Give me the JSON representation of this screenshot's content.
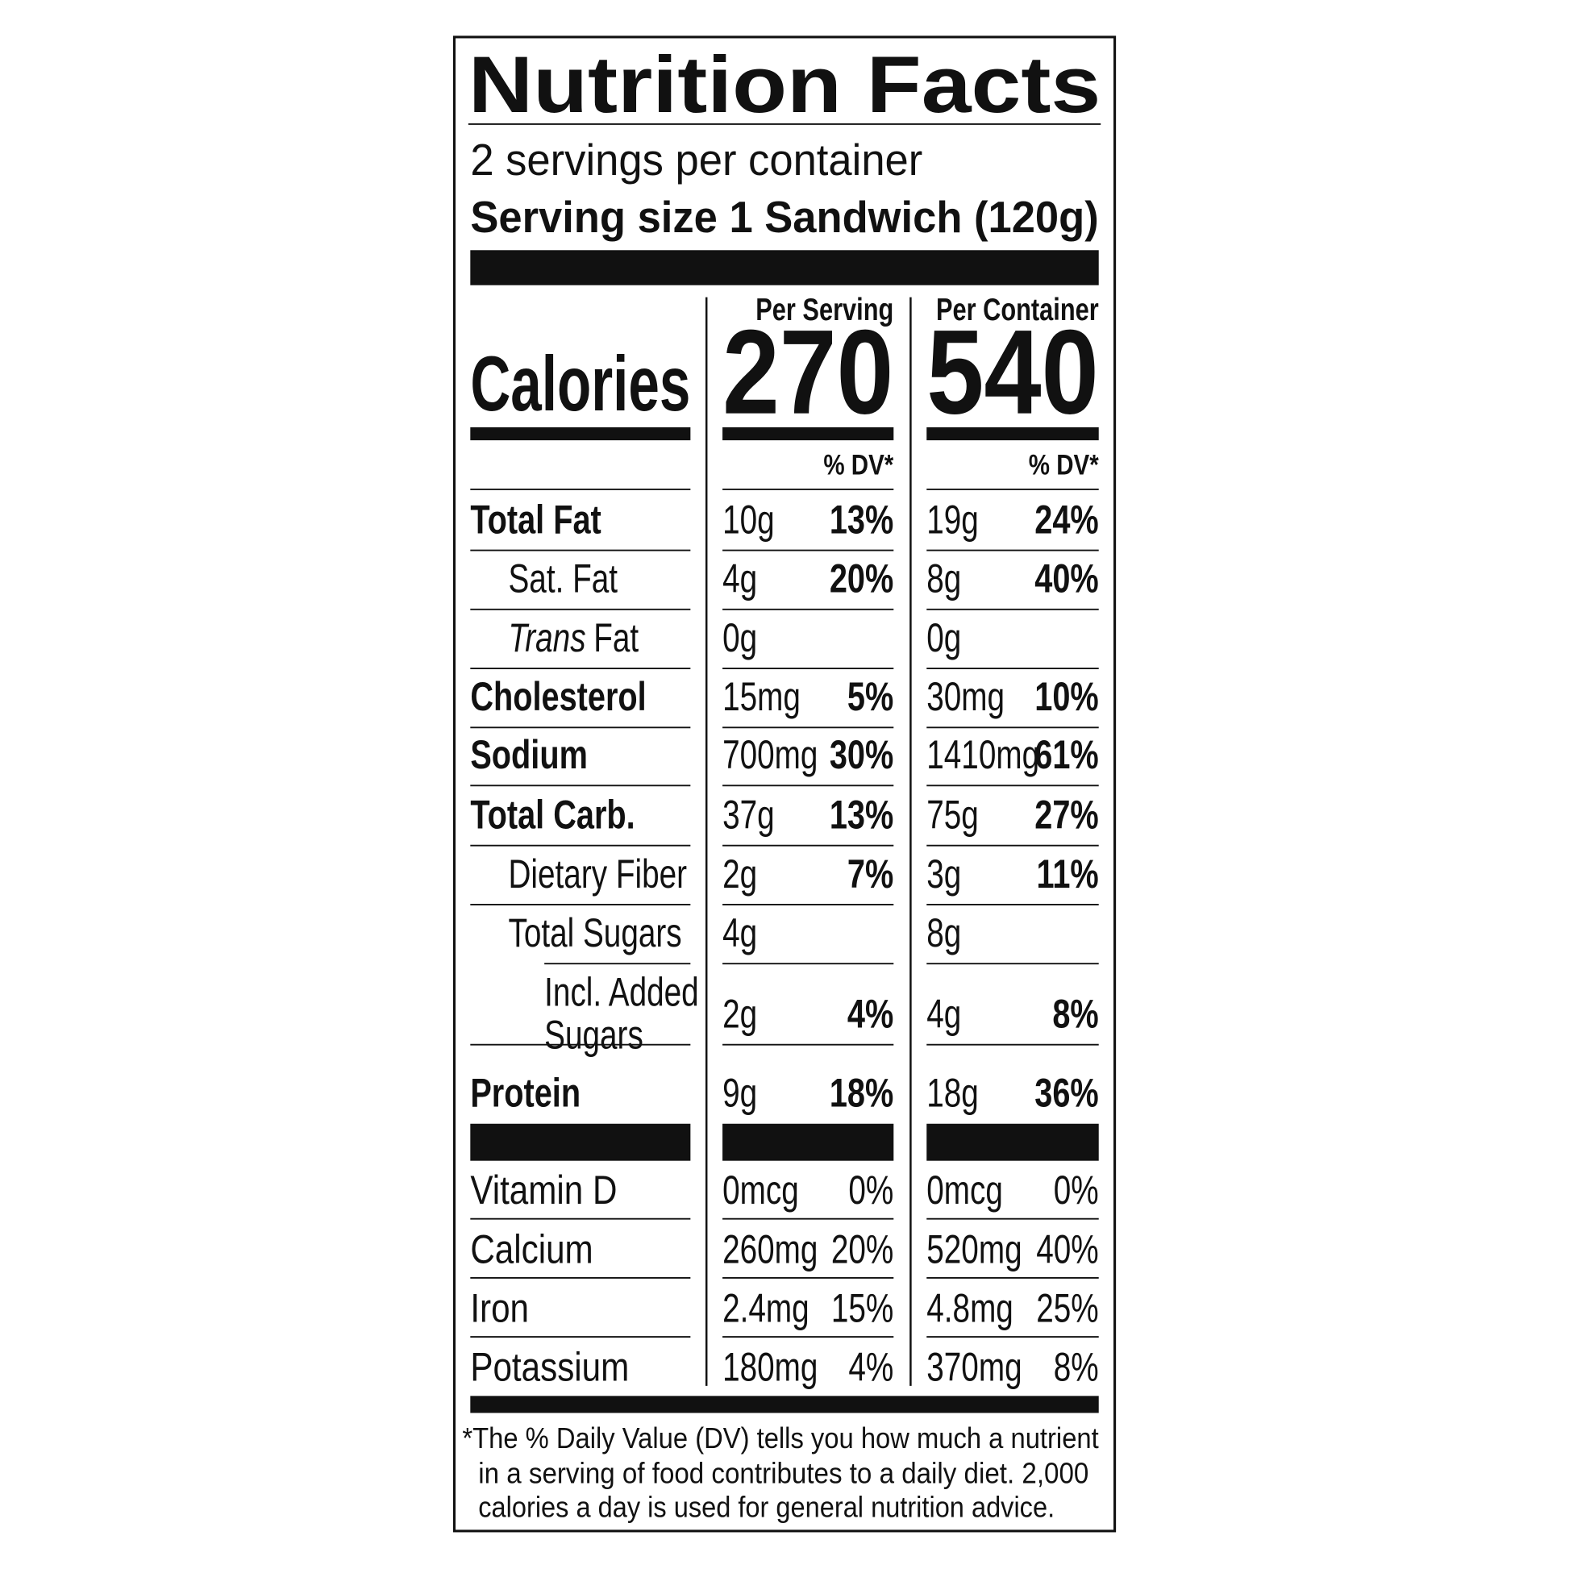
{
  "title": "Nutrition Facts",
  "servings": "2 servings per container",
  "serving_size": "Serving size 1 Sandwich (120g)",
  "columns": [
    "Per Serving",
    "Per Container"
  ],
  "calories_label": "Calories",
  "calories": [
    "270",
    "540"
  ],
  "dv_header": [
    "% DV*",
    "% DV*"
  ],
  "nutrients": [
    {
      "name": "Total Fat",
      "values": [
        [
          "10g",
          "13%"
        ],
        [
          "19g",
          "24%"
        ]
      ]
    },
    {
      "name": "Sat. Fat",
      "values": [
        [
          "4g",
          "20%"
        ],
        [
          "8g",
          "40%"
        ]
      ]
    },
    {
      "emphasis": "Trans",
      "name": "Fat",
      "values": [
        [
          "0g"
        ],
        [
          "0g"
        ]
      ]
    },
    {
      "name": "Cholesterol",
      "values": [
        [
          "15mg",
          "5%"
        ],
        [
          "30mg",
          "10%"
        ]
      ]
    },
    {
      "name": "Sodium",
      "values": [
        [
          "700mg",
          "30%"
        ],
        [
          "1410mg",
          "61%"
        ]
      ]
    },
    {
      "name": "Total Carb.",
      "values": [
        [
          "37g",
          "13%"
        ],
        [
          "75g",
          "27%"
        ]
      ]
    },
    {
      "name": "Dietary Fiber",
      "values": [
        [
          "2g",
          "7%"
        ],
        [
          "3g",
          "11%"
        ]
      ]
    },
    {
      "name": "Total Sugars",
      "values": [
        [
          "4g"
        ],
        [
          "8g"
        ]
      ]
    },
    {
      "name": [
        "Incl. Added",
        "Sugars"
      ],
      "values": [
        [
          "2g",
          "4%"
        ],
        [
          "4g",
          "8%"
        ]
      ]
    },
    {
      "name": "Protein",
      "values": [
        [
          "9g",
          "18%"
        ],
        [
          "18g",
          "36%"
        ]
      ]
    }
  ],
  "vitamins": [
    {
      "name": "Vitamin D",
      "values": [
        [
          "0mcg",
          "0%"
        ],
        [
          "0mcg",
          "0%"
        ]
      ]
    },
    {
      "name": "Calcium",
      "values": [
        [
          "260mg",
          "20%"
        ],
        [
          "520mg",
          "40%"
        ]
      ]
    },
    {
      "name": "Iron",
      "values": [
        [
          "2.4mg",
          "15%"
        ],
        [
          "4.8mg",
          "25%"
        ]
      ]
    },
    {
      "name": "Potassium",
      "values": [
        [
          "180mg",
          "4%"
        ],
        [
          "370mg",
          "8%"
        ]
      ]
    }
  ],
  "footnote": [
    "*The % Daily Value (DV) tells you how much a nutrient",
    "in a serving of food contributes to a daily diet. 2,000",
    "calories a day is used for general nutrition advice."
  ]
}
